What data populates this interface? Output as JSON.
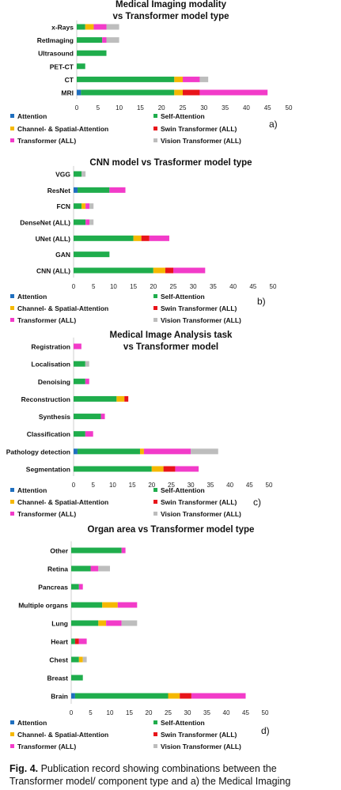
{
  "colors": {
    "Attention": "#1f6fbf",
    "Self-Attention": "#1fad4c",
    "Channel- & Spatial-Attention": "#f5b800",
    "Swin Transformer (ALL)": "#e8141a",
    "Transformer (ALL)": "#f23bc9",
    "Vision Transformer (ALL)": "#bdbdbd"
  },
  "legend": [
    "Attention",
    "Self-Attention",
    "Channel- & Spatial-Attention",
    "Swin Transformer (ALL)",
    "Transformer (ALL)",
    "Vision Transformer (ALL)"
  ],
  "chart_data": [
    {
      "type": "bar",
      "orientation": "horizontal",
      "stacked": true,
      "title": [
        "Medical Imaging modality",
        "vs Transformer model type"
      ],
      "panel_label": "a)",
      "xlim": [
        0,
        50
      ],
      "xticks": [
        0,
        5,
        10,
        15,
        20,
        25,
        30,
        35,
        40,
        45,
        50
      ],
      "legend_placement": "bottom",
      "categories": [
        "x-Rays",
        "RetImaging",
        "Ultrasound",
        "PET-CT",
        "CT",
        "MRI"
      ],
      "series": [
        {
          "name": "Attention",
          "values": [
            0,
            0,
            0,
            0,
            0,
            1
          ]
        },
        {
          "name": "Self-Attention",
          "values": [
            2,
            6,
            7,
            2,
            23,
            22
          ]
        },
        {
          "name": "Channel- & Spatial-Attention",
          "values": [
            2,
            0,
            0,
            0,
            2,
            2
          ]
        },
        {
          "name": "Swin Transformer (ALL)",
          "values": [
            0,
            0,
            0,
            0,
            0,
            4
          ]
        },
        {
          "name": "Transformer (ALL)",
          "values": [
            3,
            1,
            0,
            0,
            4,
            16
          ]
        },
        {
          "name": "Vision Transformer (ALL)",
          "values": [
            3,
            3,
            0,
            0,
            2,
            0
          ]
        }
      ]
    },
    {
      "type": "bar",
      "orientation": "horizontal",
      "stacked": true,
      "title": [
        "CNN model vs Trasformer model type"
      ],
      "panel_label": "b)",
      "xlim": [
        0,
        50
      ],
      "xticks": [
        0,
        5,
        10,
        15,
        20,
        25,
        30,
        35,
        40,
        45,
        50
      ],
      "legend_placement": "bottom",
      "categories": [
        "VGG",
        "ResNet",
        "FCN",
        "DenseNet (ALL)",
        "UNet (ALL)",
        "GAN",
        "CNN (ALL)"
      ],
      "series": [
        {
          "name": "Attention",
          "values": [
            0,
            1,
            0,
            0,
            0,
            0,
            0
          ]
        },
        {
          "name": "Self-Attention",
          "values": [
            2,
            8,
            2,
            3,
            15,
            9,
            20
          ]
        },
        {
          "name": "Channel- & Spatial-Attention",
          "values": [
            0,
            0,
            1,
            0,
            2,
            0,
            3
          ]
        },
        {
          "name": "Swin Transformer (ALL)",
          "values": [
            0,
            0,
            0,
            0,
            2,
            0,
            2
          ]
        },
        {
          "name": "Transformer (ALL)",
          "values": [
            0,
            4,
            1,
            1,
            5,
            0,
            8
          ]
        },
        {
          "name": "Vision Transformer (ALL)",
          "values": [
            1,
            0,
            1,
            1,
            0,
            0,
            0
          ]
        }
      ]
    },
    {
      "type": "bar",
      "orientation": "horizontal",
      "stacked": true,
      "title": [
        "Medical Image Analysis task",
        "vs Transformer model"
      ],
      "panel_label": "c)",
      "xlim": [
        0,
        50
      ],
      "xticks": [
        0,
        5,
        10,
        15,
        20,
        25,
        30,
        35,
        40,
        45,
        50
      ],
      "legend_placement": "bottom",
      "categories": [
        "Registration",
        "Localisation",
        "Denoising",
        "Reconstruction",
        "Synthesis",
        "Classification",
        "Pathology detection",
        "Segmentation"
      ],
      "series": [
        {
          "name": "Attention",
          "values": [
            0,
            0,
            0,
            0,
            0,
            0,
            1,
            0
          ]
        },
        {
          "name": "Self-Attention",
          "values": [
            0,
            3,
            3,
            11,
            7,
            3,
            16,
            20
          ]
        },
        {
          "name": "Channel- & Spatial-Attention",
          "values": [
            0,
            0,
            0,
            2,
            0,
            0,
            1,
            3
          ]
        },
        {
          "name": "Swin Transformer (ALL)",
          "values": [
            0,
            0,
            0,
            1,
            0,
            0,
            0,
            3
          ]
        },
        {
          "name": "Transformer (ALL)",
          "values": [
            2,
            0,
            1,
            0,
            1,
            2,
            12,
            6
          ]
        },
        {
          "name": "Vision Transformer (ALL)",
          "values": [
            0,
            1,
            0,
            0,
            0,
            0,
            7,
            0
          ]
        }
      ]
    },
    {
      "type": "bar",
      "orientation": "horizontal",
      "stacked": true,
      "title": [
        "Organ area vs Transformer model type"
      ],
      "panel_label": "d)",
      "xlim": [
        0,
        50
      ],
      "xticks": [
        0,
        5,
        10,
        15,
        20,
        25,
        30,
        35,
        40,
        45,
        50
      ],
      "legend_placement": "bottom",
      "categories": [
        "Other",
        "Retina",
        "Pancreas",
        "Multiple organs",
        "Lung",
        "Heart",
        "Chest",
        "Breast",
        "Brain"
      ],
      "series": [
        {
          "name": "Attention",
          "values": [
            0,
            0,
            0,
            0,
            0,
            0,
            0,
            0,
            1
          ]
        },
        {
          "name": "Self-Attention",
          "values": [
            13,
            5,
            2,
            8,
            7,
            1,
            2,
            3,
            24
          ]
        },
        {
          "name": "Channel- & Spatial-Attention",
          "values": [
            0,
            0,
            0,
            4,
            2,
            0,
            1,
            0,
            3
          ]
        },
        {
          "name": "Swin Transformer (ALL)",
          "values": [
            0,
            0,
            0,
            0,
            0,
            1,
            0,
            0,
            3
          ]
        },
        {
          "name": "Transformer (ALL)",
          "values": [
            1,
            2,
            1,
            5,
            4,
            2,
            0,
            0,
            14
          ]
        },
        {
          "name": "Vision Transformer (ALL)",
          "values": [
            0,
            3,
            0,
            0,
            4,
            0,
            1,
            0,
            0
          ]
        }
      ]
    }
  ],
  "caption": {
    "label": "Fig. 4.",
    "line1": "Publication record showing combinations between the",
    "line2": "Transformer model/ component type and a) the Medical Imaging"
  }
}
